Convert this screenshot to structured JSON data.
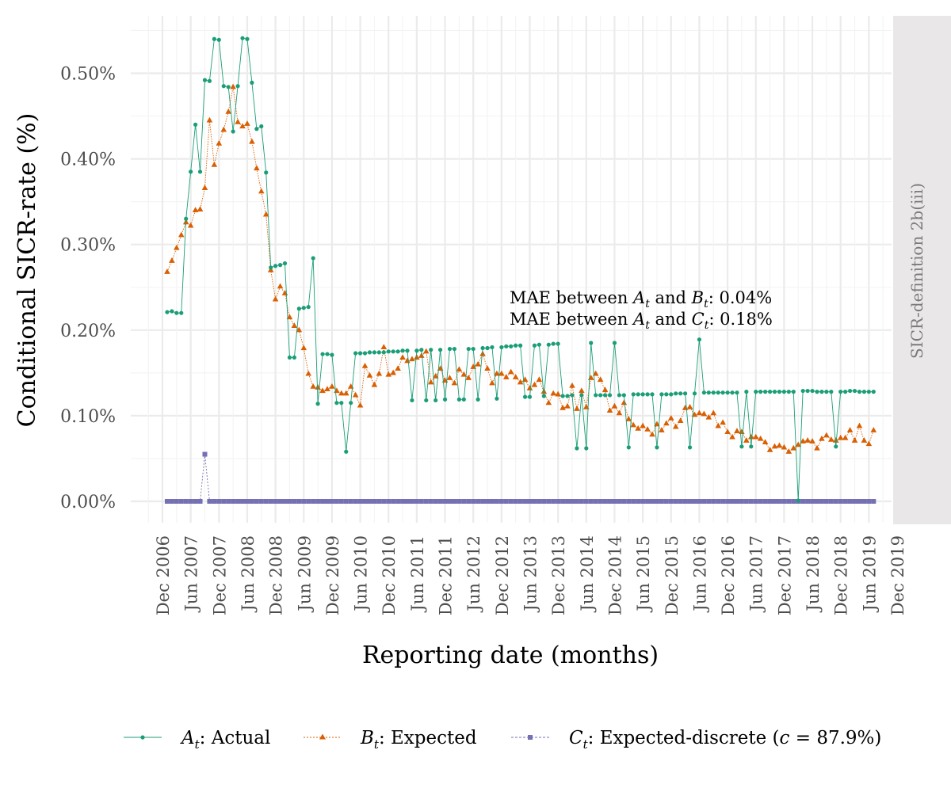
{
  "chart_data": {
    "type": "line",
    "ylabel": "Conditional SICR-rate (%)",
    "xlabel": "Reporting date (months)",
    "facet_label": "SICR-definition 2b(iii)",
    "y_ticks": [
      "0.00%",
      "0.10%",
      "0.20%",
      "0.30%",
      "0.40%",
      "0.50%"
    ],
    "y_tick_values": [
      0,
      0.1,
      0.2,
      0.3,
      0.4,
      0.5
    ],
    "ylim": [
      -0.025,
      0.56
    ],
    "x_ticks": [
      "Dec 2006",
      "Jun 2007",
      "Dec 2007",
      "Jun 2008",
      "Dec 2008",
      "Jun 2009",
      "Dec 2009",
      "Jun 2010",
      "Dec 2010",
      "Jun 2011",
      "Dec 2011",
      "Jun 2012",
      "Dec 2012",
      "Jun 2013",
      "Dec 2013",
      "Jun 2014",
      "Dec 2014",
      "Jun 2015",
      "Dec 2015",
      "Jun 2016",
      "Dec 2016",
      "Jun 2017",
      "Dec 2017",
      "Jun 2018",
      "Dec 2018",
      "Jun 2019",
      "Dec 2019"
    ],
    "x_start": "2007-01",
    "annotation": {
      "line1_prefix": "MAE between ",
      "line1_a": "A",
      "line1_sub_a": "t",
      "line1_mid": " and ",
      "line1_b": "B",
      "line1_sub_b": "t",
      "line1_value": ": 0.04%",
      "line2_prefix": "MAE between ",
      "line2_a": "A",
      "line2_sub_a": "t",
      "line2_mid": " and ",
      "line2_c": "C",
      "line2_sub_c": "t",
      "line2_value": ": 0.18%"
    },
    "series": [
      {
        "name": "Actual",
        "symbol": "A",
        "subscript": "t",
        "color": "#1b9e77",
        "marker": "circle",
        "values": [
          0.221,
          0.222,
          0.22,
          0.22,
          0.33,
          0.385,
          0.44,
          0.385,
          0.492,
          0.491,
          0.54,
          0.539,
          0.485,
          0.484,
          0.432,
          0.485,
          0.541,
          0.54,
          0.489,
          0.435,
          0.438,
          0.384,
          0.273,
          0.275,
          0.276,
          0.278,
          0.168,
          0.168,
          0.225,
          0.226,
          0.227,
          0.284,
          0.114,
          0.172,
          0.172,
          0.171,
          0.115,
          0.115,
          0.058,
          0.115,
          0.173,
          0.173,
          0.173,
          0.174,
          0.174,
          0.174,
          0.174,
          0.175,
          0.175,
          0.175,
          0.176,
          0.176,
          0.118,
          0.176,
          0.177,
          0.118,
          0.177,
          0.118,
          0.177,
          0.119,
          0.178,
          0.178,
          0.119,
          0.119,
          0.178,
          0.178,
          0.119,
          0.179,
          0.179,
          0.18,
          0.12,
          0.18,
          0.181,
          0.181,
          0.182,
          0.182,
          0.122,
          0.122,
          0.182,
          0.183,
          0.123,
          0.183,
          0.184,
          0.184,
          0.123,
          0.123,
          0.124,
          0.062,
          0.124,
          0.062,
          0.185,
          0.124,
          0.124,
          0.124,
          0.124,
          0.185,
          0.124,
          0.124,
          0.063,
          0.125,
          0.125,
          0.125,
          0.125,
          0.125,
          0.063,
          0.125,
          0.125,
          0.125,
          0.126,
          0.126,
          0.126,
          0.063,
          0.126,
          0.189,
          0.127,
          0.127,
          0.127,
          0.127,
          0.127,
          0.127,
          0.127,
          0.127,
          0.064,
          0.128,
          0.064,
          0.128,
          0.128,
          0.128,
          0.128,
          0.128,
          0.128,
          0.128,
          0.128,
          0.128,
          0.001,
          0.129,
          0.129,
          0.129,
          0.128,
          0.128,
          0.128,
          0.128,
          0.064,
          0.128,
          0.128,
          0.129,
          0.129,
          0.128,
          0.128,
          0.128,
          0.128
        ]
      },
      {
        "name": "Expected",
        "symbol": "B",
        "subscript": "t",
        "color": "#d95f02",
        "marker": "triangle",
        "values": [
          0.268,
          0.281,
          0.296,
          0.311,
          0.326,
          0.322,
          0.34,
          0.341,
          0.366,
          0.445,
          0.393,
          0.418,
          0.434,
          0.455,
          0.484,
          0.443,
          0.438,
          0.441,
          0.42,
          0.389,
          0.362,
          0.335,
          0.27,
          0.236,
          0.251,
          0.243,
          0.215,
          0.205,
          0.2,
          0.179,
          0.149,
          0.134,
          0.133,
          0.129,
          0.131,
          0.134,
          0.129,
          0.126,
          0.126,
          0.134,
          0.124,
          0.112,
          0.158,
          0.147,
          0.136,
          0.149,
          0.18,
          0.148,
          0.15,
          0.155,
          0.168,
          0.164,
          0.166,
          0.168,
          0.17,
          0.175,
          0.139,
          0.146,
          0.155,
          0.141,
          0.144,
          0.138,
          0.154,
          0.148,
          0.144,
          0.157,
          0.16,
          0.172,
          0.155,
          0.138,
          0.149,
          0.149,
          0.145,
          0.151,
          0.145,
          0.139,
          0.142,
          0.132,
          0.136,
          0.142,
          0.128,
          0.115,
          0.126,
          0.125,
          0.109,
          0.111,
          0.135,
          0.108,
          0.129,
          0.11,
          0.144,
          0.149,
          0.142,
          0.13,
          0.106,
          0.111,
          0.103,
          0.115,
          0.096,
          0.089,
          0.085,
          0.088,
          0.084,
          0.078,
          0.09,
          0.083,
          0.091,
          0.097,
          0.087,
          0.094,
          0.109,
          0.11,
          0.101,
          0.103,
          0.102,
          0.098,
          0.103,
          0.088,
          0.092,
          0.081,
          0.075,
          0.082,
          0.081,
          0.071,
          0.075,
          0.075,
          0.073,
          0.069,
          0.06,
          0.064,
          0.065,
          0.063,
          0.058,
          0.062,
          0.066,
          0.07,
          0.071,
          0.07,
          0.062,
          0.073,
          0.077,
          0.072,
          0.071,
          0.074,
          0.074,
          0.083,
          0.071,
          0.088,
          0.071,
          0.067,
          0.083
        ]
      },
      {
        "name": "Expected-discrete",
        "symbol": "C",
        "subscript": "t",
        "color": "#7570b3",
        "marker": "square",
        "spike_index": 8,
        "spike_value": 0.055,
        "values_default": 0
      }
    ],
    "legend": {
      "position": "bottom",
      "items": [
        {
          "symbol": "A",
          "sub": "t",
          "label": ": Actual"
        },
        {
          "symbol": "B",
          "sub": "t",
          "label": ": Expected"
        },
        {
          "symbol": "C",
          "sub": "t",
          "label": ": Expected-discrete (",
          "c_symbol": "c",
          "c_value": " = 87.9%)"
        }
      ]
    }
  }
}
